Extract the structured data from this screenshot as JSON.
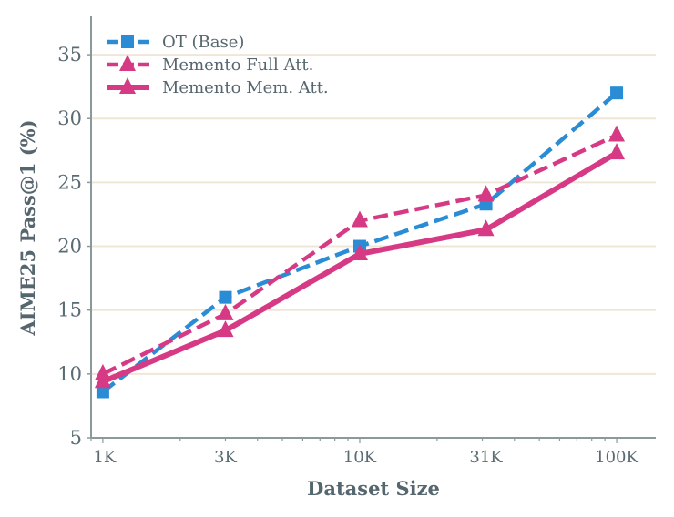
{
  "chart_data": {
    "type": "line",
    "xlabel": "Dataset Size",
    "ylabel": "AIME25 Pass@1 (%)",
    "x_scale": "log",
    "x": [
      1000,
      3000,
      10000,
      31000,
      100000
    ],
    "x_tick_labels": [
      "1K",
      "3K",
      "10K",
      "31K",
      "100K"
    ],
    "xlim": [
      900,
      142000
    ],
    "ylim": [
      5,
      38
    ],
    "y_ticks": [
      5,
      10,
      15,
      20,
      25,
      30,
      35
    ],
    "grid": "horizontal",
    "legend_position": "top-left",
    "series": [
      {
        "name": "OT (Base)",
        "values": [
          8.6,
          16.0,
          20.0,
          23.3,
          32.0
        ],
        "color": "#2b8cd6",
        "marker": "square",
        "linestyle": "dashed"
      },
      {
        "name": "Memento Full Att.",
        "values": [
          10.0,
          14.7,
          22.0,
          24.0,
          28.7
        ],
        "color": "#d63a85",
        "marker": "triangle",
        "linestyle": "dashed"
      },
      {
        "name": "Memento Mem. Att.",
        "values": [
          9.4,
          13.4,
          19.4,
          21.3,
          27.3
        ],
        "color": "#d63a85",
        "marker": "triangle",
        "linestyle": "solid"
      }
    ]
  }
}
